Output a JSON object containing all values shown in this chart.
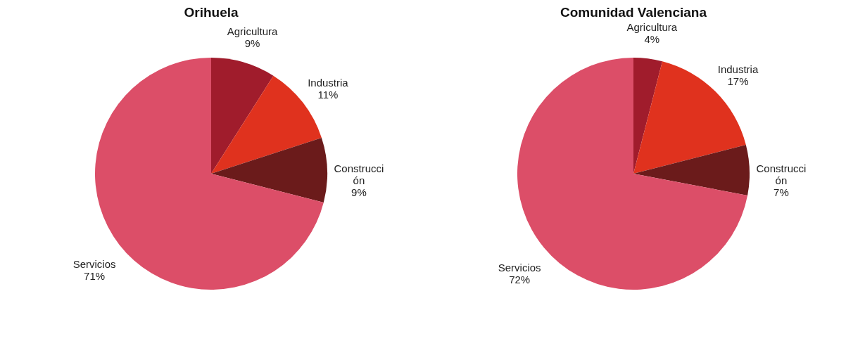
{
  "chart_data": [
    {
      "type": "pie",
      "title": "Orihuela",
      "categories": [
        "Agricultura",
        "Industria",
        "Construcción",
        "Servicios"
      ],
      "values": [
        9,
        11,
        9,
        71
      ],
      "colors": [
        "#a01c2c",
        "#e0321e",
        "#6b1b1b",
        "#dc4e68"
      ],
      "value_labels": [
        "9%",
        "11%",
        "9%",
        "71%"
      ]
    },
    {
      "type": "pie",
      "title": "Comunidad Valenciana",
      "categories": [
        "Agricultura",
        "Industria",
        "Construcción",
        "Servicios"
      ],
      "values": [
        4,
        17,
        7,
        72
      ],
      "colors": [
        "#a01c2c",
        "#e0321e",
        "#6b1b1b",
        "#dc4e68"
      ],
      "value_labels": [
        "4%",
        "17%",
        "7%",
        "72%"
      ]
    }
  ]
}
